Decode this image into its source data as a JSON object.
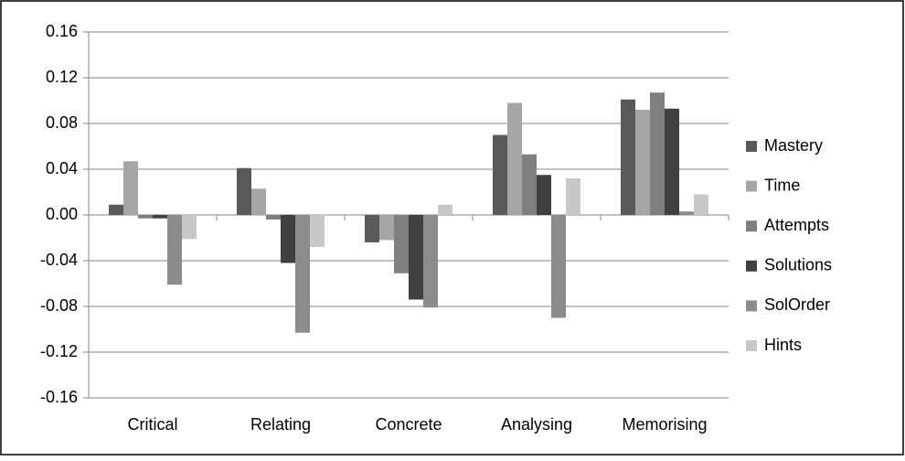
{
  "chart_data": {
    "type": "bar",
    "categories": [
      "Critical",
      "Relating",
      "Concrete",
      "Analysing",
      "Memorising"
    ],
    "series": [
      {
        "name": "Mastery",
        "color": "#595959",
        "values": [
          0.009,
          0.041,
          -0.024,
          0.07,
          0.101
        ]
      },
      {
        "name": "Time",
        "color": "#a6a6a6",
        "values": [
          0.047,
          0.023,
          -0.022,
          0.098,
          0.092
        ]
      },
      {
        "name": "Attempts",
        "color": "#7f7f7f",
        "values": [
          -0.003,
          -0.004,
          -0.051,
          0.053,
          0.107
        ]
      },
      {
        "name": "Solutions",
        "color": "#404040",
        "values": [
          -0.003,
          -0.042,
          -0.074,
          0.035,
          0.093
        ]
      },
      {
        "name": "SolOrder",
        "color": "#8c8c8c",
        "values": [
          -0.061,
          -0.103,
          -0.081,
          -0.09,
          0.003
        ]
      },
      {
        "name": "Hints",
        "color": "#c8c8c8",
        "values": [
          -0.021,
          -0.028,
          0.009,
          0.032,
          0.018
        ]
      }
    ],
    "ylim": [
      -0.16,
      0.16
    ],
    "yticks": [
      -0.16,
      -0.12,
      -0.08,
      -0.04,
      {
        "value": 0,
        "label": "0.00"
      },
      0.04,
      0.08,
      0.12,
      0.16
    ],
    "grid": true,
    "legend": "right"
  }
}
